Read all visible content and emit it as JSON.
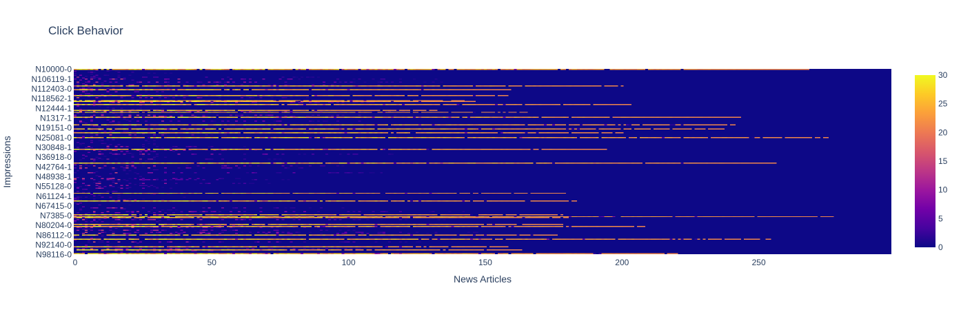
{
  "chart_data": {
    "type": "heatmap",
    "title": "Click Behavior",
    "xlabel": "News Articles",
    "ylabel": "Impressions",
    "xlim": [
      0,
      299
    ],
    "x_ticks": [
      "0",
      "50",
      "100",
      "150",
      "200",
      "250"
    ],
    "y_ticks": [
      "N10000-0",
      "N106119-1",
      "N112403-0",
      "N118562-1",
      "N12444-1",
      "N1317-1",
      "N19151-0",
      "N25081-0",
      "N30848-1",
      "N36918-0",
      "N42764-1",
      "N48938-1",
      "N55128-0",
      "N61124-1",
      "N67415-0",
      "N7385-0",
      "N80204-0",
      "N86112-0",
      "N92140-0",
      "N98116-0"
    ],
    "colorbar": {
      "min": 0,
      "max": 30,
      "ticks": [
        "0",
        "5",
        "10",
        "15",
        "20",
        "25",
        "30"
      ]
    },
    "colorscale": [
      "#0d0887",
      "#46039f",
      "#7201a8",
      "#9c179e",
      "#bd3786",
      "#d8576b",
      "#ed7953",
      "#fb9f3a",
      "#fdca26",
      "#f0f921"
    ],
    "zmin": 0,
    "zmax": 30,
    "num_rows": 190,
    "num_cols": 299
  }
}
